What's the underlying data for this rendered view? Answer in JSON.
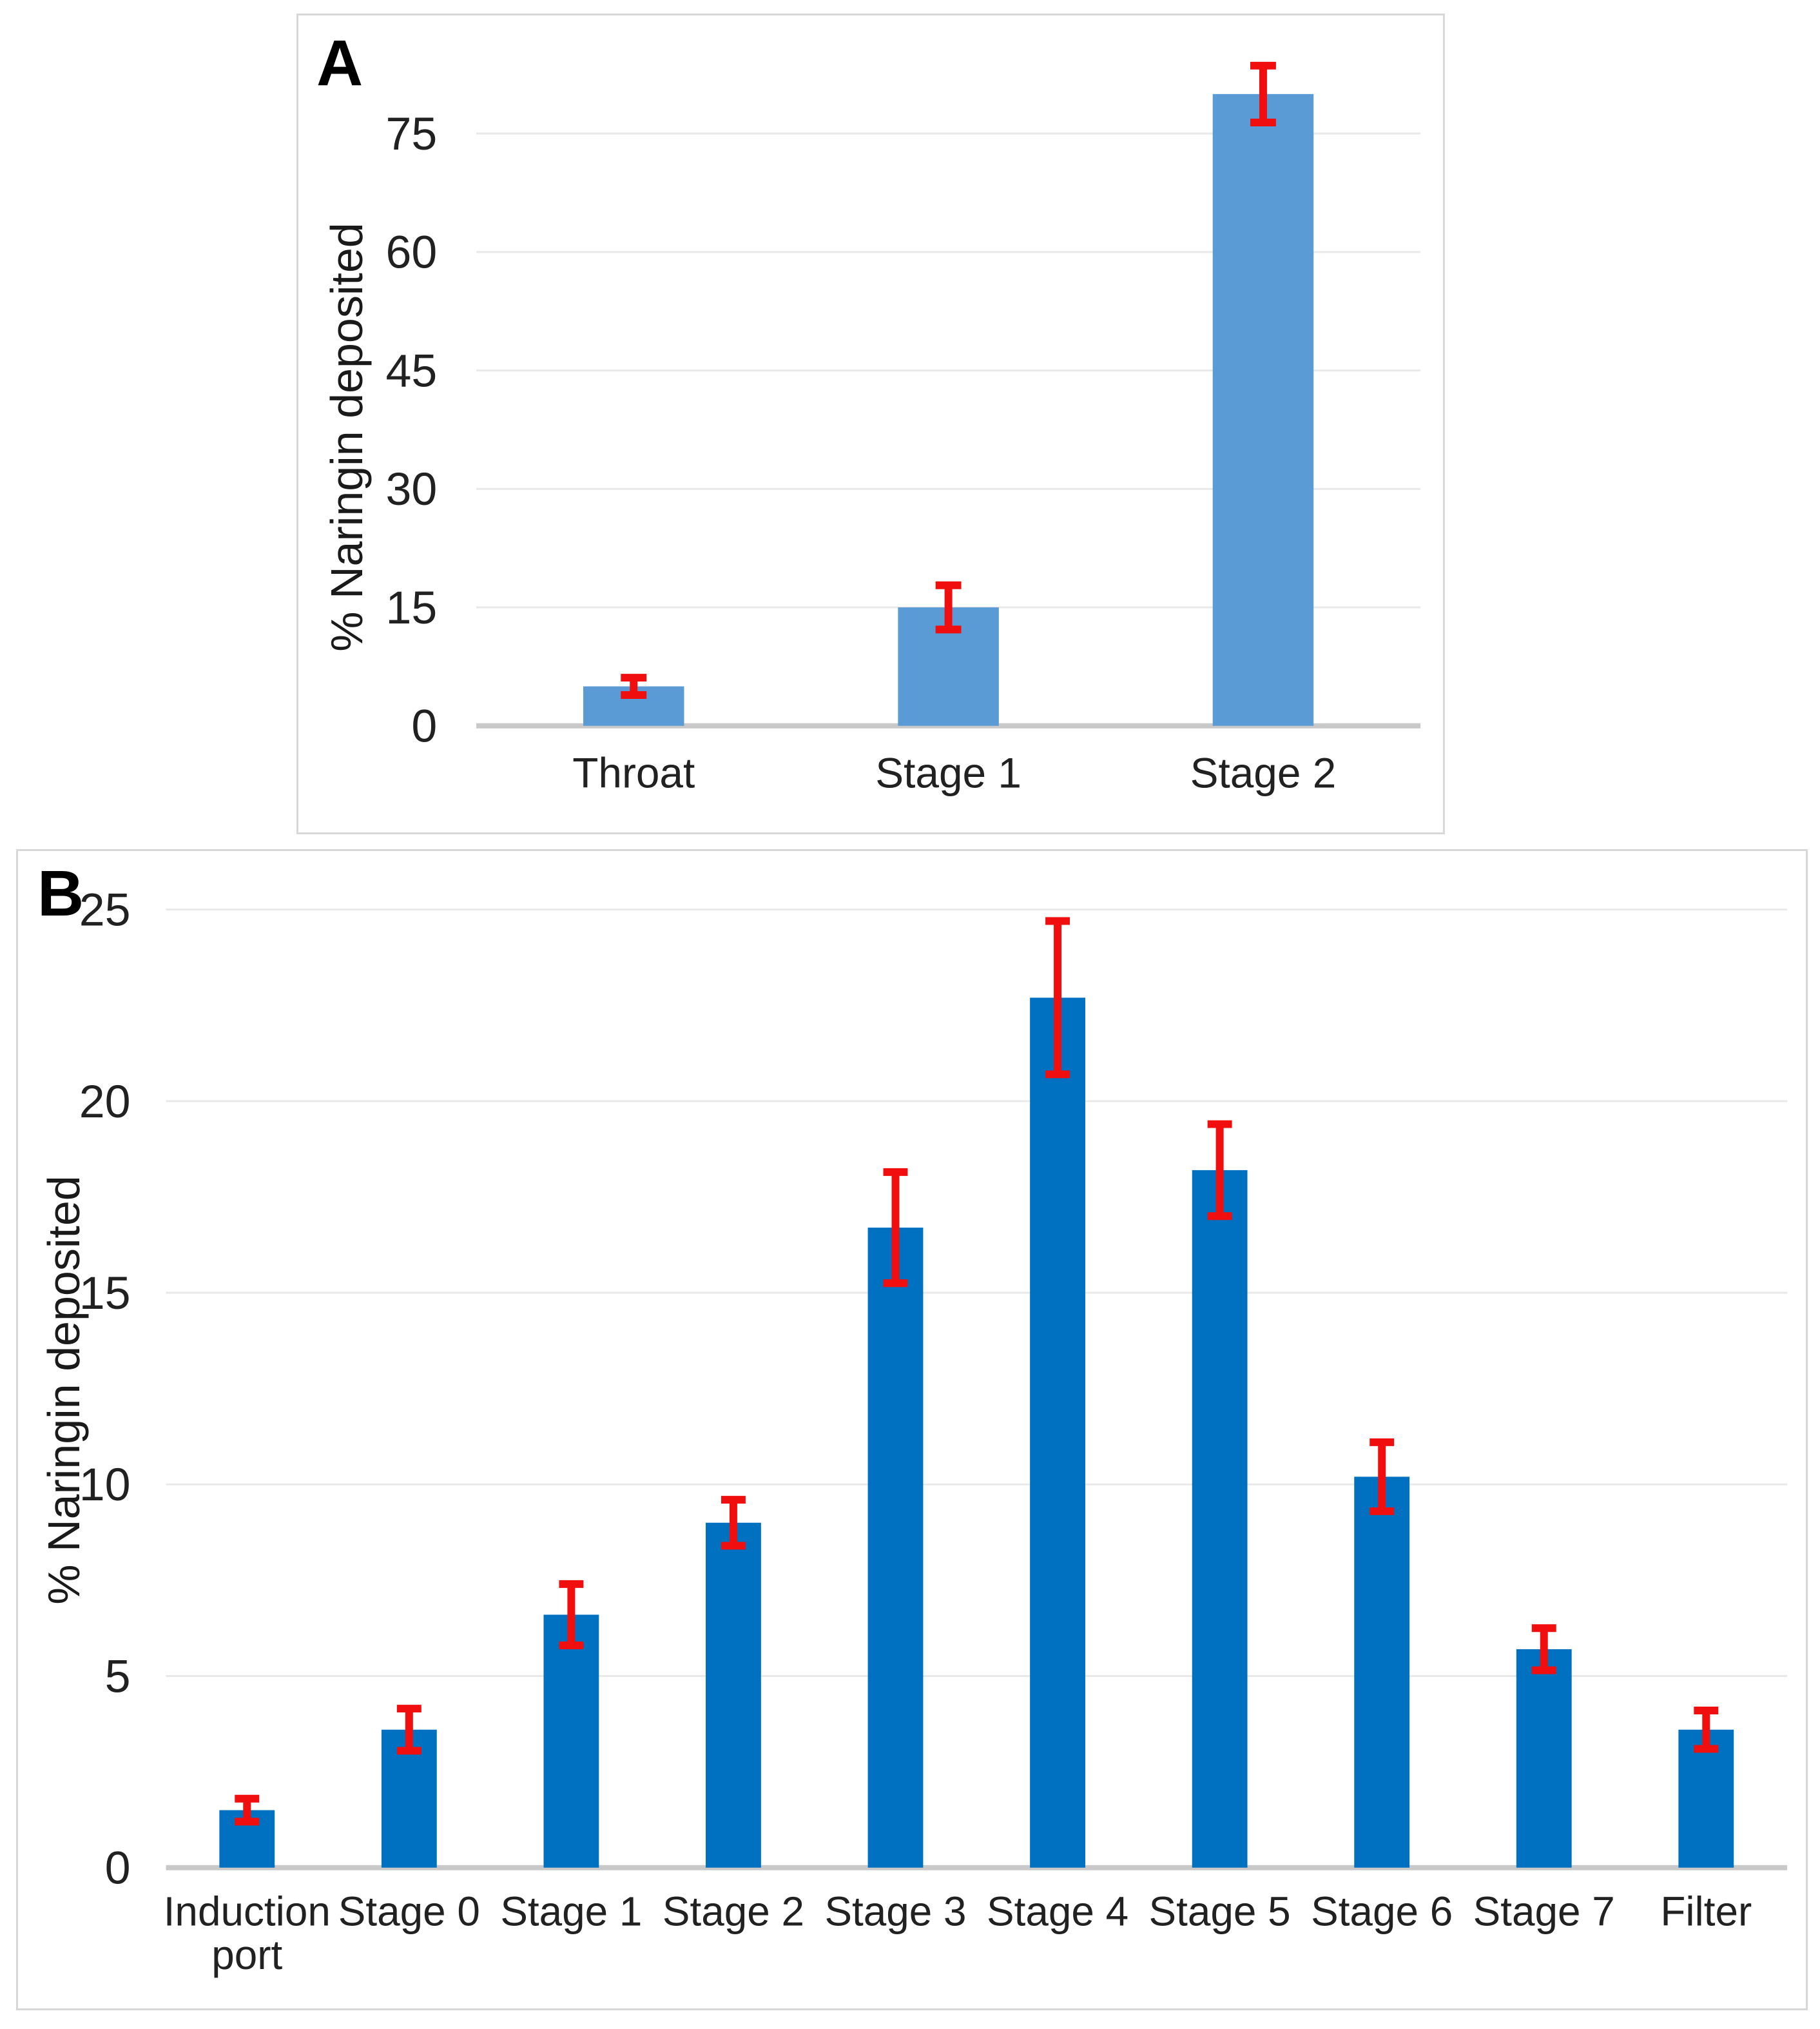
{
  "figure": {
    "background": "#ffffff",
    "panel_border_color": "#d8d8d8",
    "gridline_color": "#e9e9e9",
    "axis_line_color": "#c9c9c9",
    "error_bar_color": "#f10e0e",
    "text_color": "#212121"
  },
  "chart_data": [
    {
      "id": "panel-a",
      "panel_label": "A",
      "type": "bar",
      "title": "",
      "xlabel": "",
      "ylabel": "% Naringin deposited",
      "categories": [
        "Throat",
        "Stage 1",
        "Stage 2"
      ],
      "values": [
        5,
        15,
        80
      ],
      "errors": [
        1.1,
        2.8,
        3.6
      ],
      "yticks": [
        0,
        15,
        30,
        45,
        60,
        75
      ],
      "ylim": [
        0,
        85
      ],
      "bar_color": "#5b9bd5",
      "error_color": "#f10e0e",
      "grid": true,
      "legend": false
    },
    {
      "id": "panel-b",
      "panel_label": "B",
      "type": "bar",
      "title": "",
      "xlabel": "",
      "ylabel": "% Naringin deposited",
      "categories": [
        "Induction\nport",
        "Stage 0",
        "Stage 1",
        "Stage 2",
        "Stage 3",
        "Stage 4",
        "Stage 5",
        "Stage 6",
        "Stage 7",
        "Filter"
      ],
      "values": [
        1.5,
        3.6,
        6.6,
        9.0,
        16.7,
        22.7,
        18.2,
        10.2,
        5.7,
        3.6
      ],
      "errors": [
        0.3,
        0.55,
        0.8,
        0.6,
        1.45,
        2.0,
        1.2,
        0.9,
        0.55,
        0.5
      ],
      "yticks": [
        0,
        5,
        10,
        15,
        20,
        25
      ],
      "ylim": [
        0,
        26
      ],
      "bar_color": "#0070c0",
      "error_color": "#f10e0e",
      "grid": true,
      "legend": false
    }
  ]
}
